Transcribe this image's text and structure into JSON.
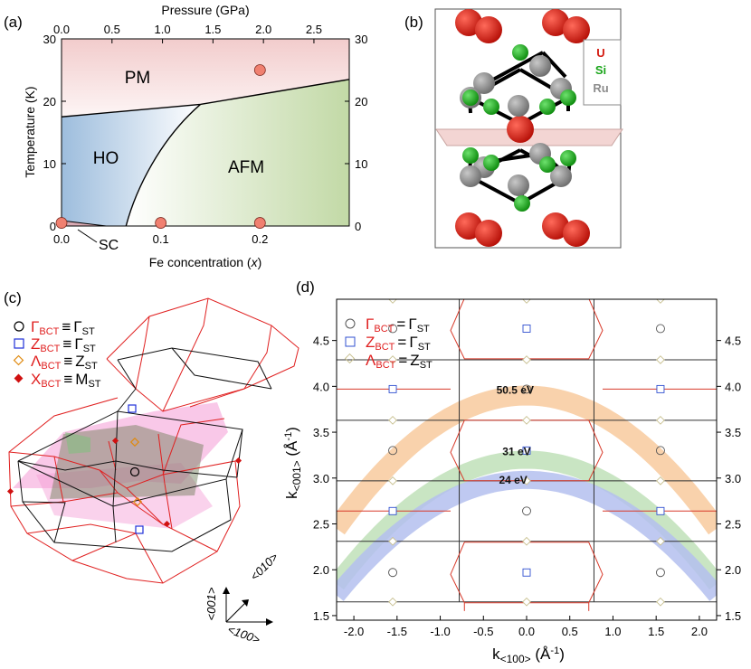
{
  "panel_a": {
    "label": "(a)",
    "top_axis_title": "Pressure (GPa)",
    "pressure_ticks": [
      "0.0",
      "0.5",
      "1.0",
      "1.5",
      "2.0",
      "2.5"
    ],
    "y_ticks": [
      "0",
      "10",
      "20",
      "30"
    ],
    "y_title": "Temperature (K)",
    "x_ticks": [
      "0.0",
      "0.1",
      "0.2"
    ],
    "x_title": "Fe concentration (",
    "x_title_var": "x",
    "x_title_end": ")",
    "phases": {
      "pm": "PM",
      "ho": "HO",
      "afm": "AFM",
      "sc": "SC"
    },
    "colors": {
      "pm": "#f3d2d2",
      "ho": "#a8c3df",
      "afm": "#c9dcb0",
      "marker": "#f08070"
    }
  },
  "panel_b": {
    "label": "(b)",
    "legend": [
      "U",
      "Si",
      "Ru"
    ],
    "colors": {
      "U": "#d41c12",
      "Si": "#1aa51a",
      "Ru": "#8c8c8c"
    }
  },
  "panel_c": {
    "label": "(c)",
    "legend": [
      {
        "sym": "Γ",
        "sub": "BCT",
        "eq": "≡",
        "rhs": "Γ",
        "rsub": "ST"
      },
      {
        "sym": "Z",
        "sub": "BCT",
        "eq": "≡",
        "rhs": "Γ",
        "rsub": "ST"
      },
      {
        "sym": "Λ",
        "sub": "BCT",
        "eq": "≡",
        "rhs": "Z",
        "rsub": "ST"
      },
      {
        "sym": "X",
        "sub": "BCT",
        "eq": "≡",
        "rhs": "M",
        "rsub": "ST"
      }
    ],
    "axes": [
      "<001>",
      "<010>",
      "<100>"
    ]
  },
  "panel_d": {
    "label": "(d)",
    "legend": [
      {
        "sym": "Γ",
        "sub": "BCT",
        "eq": "=",
        "rhs": "Γ",
        "rsub": "ST"
      },
      {
        "sym": "Z",
        "sub": "BCT",
        "eq": "=",
        "rhs": "Γ",
        "rsub": "ST"
      },
      {
        "sym": "Λ",
        "sub": "BCT",
        "eq": "=",
        "rhs": "Z",
        "rsub": "ST"
      }
    ],
    "x_title": "k",
    "x_sub": "<100>",
    "x_unit": " (Å",
    "x_unit_exp": "-1",
    "x_unit_end": ")",
    "y_title": "k",
    "y_sub": "<001>",
    "y_unit": " (Å",
    "y_unit_exp": "-1",
    "y_unit_end": ")"
  },
  "chart_data": [
    {
      "type": "scatter",
      "title": "",
      "xlabel": "Fe concentration (x)",
      "ylabel": "Temperature (K)",
      "xlim": [
        0.0,
        0.29
      ],
      "ylim": [
        0,
        30
      ],
      "top_axis": {
        "label": "Pressure (GPa)",
        "lim": [
          0.0,
          2.85
        ],
        "ticks": [
          0.0,
          0.5,
          1.0,
          1.5,
          2.0,
          2.5
        ]
      },
      "points": [
        {
          "x": 0.0,
          "y": 0.5
        },
        {
          "x": 0.1,
          "y": 0.5
        },
        {
          "x": 0.2,
          "y": 0.5
        },
        {
          "x": 0.2,
          "y": 25.0
        }
      ],
      "boundaries": [
        {
          "name": "PM / HO-AFM",
          "x": [
            0.0,
            0.14,
            0.29
          ],
          "y": [
            17.5,
            19.5,
            23.5
          ]
        },
        {
          "name": "HO / AFM",
          "x": [
            0.065,
            0.08,
            0.1,
            0.14
          ],
          "y": [
            0,
            8,
            14,
            19.5
          ]
        }
      ],
      "regions": [
        "PM",
        "HO",
        "AFM",
        "SC"
      ]
    },
    {
      "type": "line",
      "title": "",
      "xlabel": "k<100> (Å-1)",
      "ylabel": "k<001> (Å-1)",
      "xlim": [
        -2.2,
        2.2
      ],
      "ylim": [
        1.45,
        4.95
      ],
      "x_ticks": [
        -2.0,
        -1.5,
        -1.0,
        -0.5,
        0.0,
        0.5,
        1.0,
        1.5,
        2.0
      ],
      "y_ticks": [
        1.5,
        2.0,
        2.5,
        3.0,
        3.5,
        4.0,
        4.5
      ],
      "horizontal_lines": [
        1.65,
        2.31,
        2.97,
        3.63,
        4.29,
        4.95
      ],
      "series": [
        {
          "name": "Γ_BCT = Γ_ST",
          "marker": "circle",
          "points": [
            [
              -1.55,
              1.97
            ],
            [
              1.55,
              1.97
            ],
            [
              0,
              2.64
            ],
            [
              -1.55,
              3.3
            ],
            [
              1.55,
              3.3
            ],
            [
              0,
              3.97
            ],
            [
              -1.55,
              4.63
            ],
            [
              1.55,
              4.63
            ]
          ]
        },
        {
          "name": "Z_BCT = Γ_ST",
          "marker": "square",
          "points": [
            [
              0,
              1.97
            ],
            [
              -1.55,
              2.64
            ],
            [
              1.55,
              2.64
            ],
            [
              0,
              3.3
            ],
            [
              -1.55,
              3.97
            ],
            [
              1.55,
              3.97
            ],
            [
              0,
              4.63
            ]
          ]
        },
        {
          "name": "Λ_BCT = Z_ST",
          "marker": "diamond",
          "points": [
            [
              -1.55,
              1.65
            ],
            [
              0,
              1.65
            ],
            [
              1.55,
              1.65
            ],
            [
              -1.55,
              2.31
            ],
            [
              0,
              2.31
            ],
            [
              1.55,
              2.31
            ],
            [
              -1.55,
              2.97
            ],
            [
              0,
              2.97
            ],
            [
              1.55,
              2.97
            ],
            [
              -1.55,
              3.63
            ],
            [
              0,
              3.63
            ],
            [
              1.55,
              3.63
            ],
            [
              -1.55,
              4.29
            ],
            [
              0,
              4.29
            ],
            [
              1.55,
              4.29
            ],
            [
              -1.55,
              4.95
            ],
            [
              0,
              4.95
            ],
            [
              1.55,
              4.95
            ]
          ]
        }
      ],
      "photon_energy_arcs": [
        {
          "label": "50.5 eV",
          "color": "#f8ca9e",
          "k_top": 3.9
        },
        {
          "label": "31 eV",
          "color": "#bfe0b8",
          "k_top": 3.2
        },
        {
          "label": "24 eV",
          "color": "#b4c0ee",
          "k_top": 2.98
        }
      ]
    }
  ]
}
